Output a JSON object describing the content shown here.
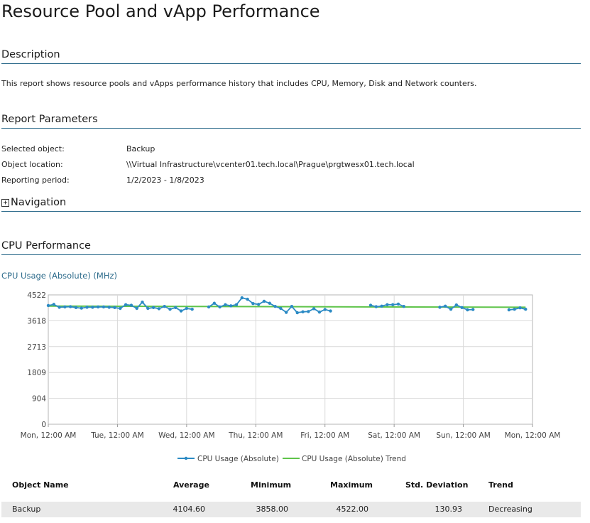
{
  "title": "Resource Pool and vApp Performance",
  "description": {
    "heading": "Description",
    "text": "This report shows resource pools and vApps performance history that includes CPU, Memory, Disk and Network counters."
  },
  "parameters": {
    "heading": "Report Parameters",
    "items": [
      {
        "label": "Selected object:",
        "value": "Backup"
      },
      {
        "label": "Object location:",
        "value": "\\\\Virtual Infrastructure\\vcenter01.tech.local\\Prague\\prgtwesx01.tech.local"
      },
      {
        "label": "Reporting period:",
        "value": "1/2/2023 - 1/8/2023"
      }
    ]
  },
  "navigation": {
    "icon": "plus-box-icon",
    "expander": "+",
    "heading": "Navigation"
  },
  "cpu": {
    "heading": "CPU Performance",
    "chart_title": "CPU Usage (Absolute) (MHz)"
  },
  "colors": {
    "series": "#2b8ac4",
    "trend": "#5fc44a",
    "accent": "#2e6c8c"
  },
  "chart_data": {
    "type": "line",
    "title": "CPU Usage (Absolute) (MHz)",
    "xlabel": "",
    "ylabel": "",
    "ylim": [
      0,
      4522
    ],
    "yticks": [
      0,
      904,
      1809,
      2713,
      3618,
      4522
    ],
    "x_tick_labels": [
      "Mon, 12:00 AM",
      "Tue, 12:00 AM",
      "Wed, 12:00 AM",
      "Thu, 12:00 AM",
      "Fri, 12:00 AM",
      "Sat, 12:00 AM",
      "Sun, 12:00 AM",
      "Mon, 12:00 AM"
    ],
    "grid": true,
    "legend": "bottom",
    "series": [
      {
        "name": "CPU Usage (Absolute)",
        "segments": [
          [
            [
              0.0,
              4150
            ],
            [
              0.08,
              4190
            ],
            [
              0.16,
              4090
            ],
            [
              0.24,
              4100
            ],
            [
              0.32,
              4110
            ],
            [
              0.4,
              4080
            ],
            [
              0.48,
              4060
            ],
            [
              0.56,
              4090
            ],
            [
              0.64,
              4090
            ],
            [
              0.72,
              4100
            ],
            [
              0.8,
              4100
            ],
            [
              0.88,
              4090
            ],
            [
              0.96,
              4080
            ],
            [
              1.04,
              4050
            ],
            [
              1.12,
              4180
            ],
            [
              1.2,
              4160
            ],
            [
              1.28,
              4050
            ],
            [
              1.36,
              4270
            ],
            [
              1.44,
              4050
            ],
            [
              1.52,
              4080
            ],
            [
              1.6,
              4040
            ],
            [
              1.68,
              4120
            ],
            [
              1.76,
              4020
            ],
            [
              1.84,
              4080
            ],
            [
              1.92,
              3960
            ],
            [
              2.0,
              4050
            ],
            [
              2.08,
              4020
            ]
          ],
          [
            [
              2.32,
              4100
            ],
            [
              2.4,
              4230
            ],
            [
              2.48,
              4100
            ],
            [
              2.56,
              4180
            ],
            [
              2.64,
              4140
            ],
            [
              2.72,
              4180
            ],
            [
              2.8,
              4420
            ],
            [
              2.88,
              4370
            ],
            [
              2.96,
              4220
            ],
            [
              3.04,
              4190
            ],
            [
              3.12,
              4300
            ],
            [
              3.2,
              4230
            ],
            [
              3.28,
              4120
            ],
            [
              3.36,
              4050
            ],
            [
              3.44,
              3910
            ],
            [
              3.52,
              4120
            ],
            [
              3.6,
              3900
            ],
            [
              3.68,
              3930
            ],
            [
              3.76,
              3940
            ],
            [
              3.84,
              4040
            ],
            [
              3.92,
              3920
            ],
            [
              4.0,
              4010
            ],
            [
              4.08,
              3960
            ]
          ],
          [
            [
              4.66,
              4160
            ],
            [
              4.74,
              4110
            ],
            [
              4.82,
              4130
            ],
            [
              4.9,
              4180
            ],
            [
              4.98,
              4180
            ],
            [
              5.06,
              4200
            ],
            [
              5.14,
              4120
            ]
          ],
          [
            [
              5.66,
              4090
            ],
            [
              5.74,
              4130
            ],
            [
              5.82,
              4020
            ],
            [
              5.9,
              4170
            ],
            [
              5.98,
              4080
            ],
            [
              6.06,
              4000
            ],
            [
              6.14,
              4010
            ]
          ],
          [
            [
              6.66,
              4000
            ],
            [
              6.74,
              4020
            ],
            [
              6.82,
              4070
            ],
            [
              6.9,
              4020
            ]
          ]
        ]
      },
      {
        "name": "CPU Usage (Absolute) Trend",
        "trend": [
          [
            0.0,
            4130
          ],
          [
            6.9,
            4090
          ]
        ]
      }
    ]
  },
  "table": {
    "headers": [
      "Object Name",
      "Average",
      "Minimum",
      "Maximum",
      "Std. Deviation",
      "Trend"
    ],
    "rows": [
      [
        "Backup",
        "4104.60",
        "3858.00",
        "4522.00",
        "130.93",
        "Decreasing"
      ]
    ]
  }
}
